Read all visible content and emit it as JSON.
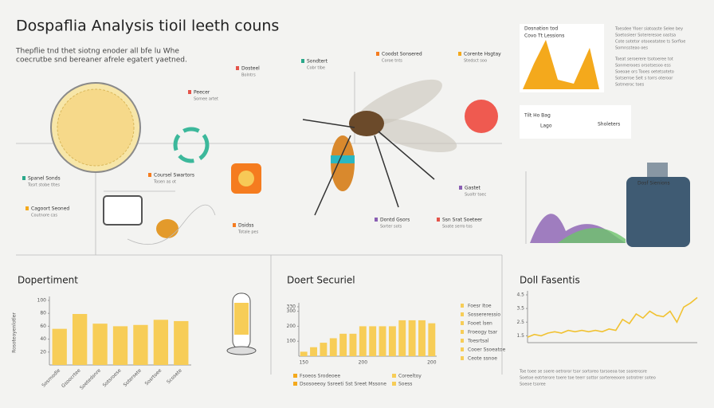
{
  "header": {
    "title": "Dospaflia Analysis tioil leeth couns",
    "subtitle": [
      "Thepflie tnd thet siotng enoder all bfe lu Whe",
      "coecrutbe snd bereaner afrele egatert yaetned."
    ]
  },
  "callouts": [
    {
      "title": "Spanel Sonds",
      "text": "Tosrt stobe tltes"
    },
    {
      "title": "Cagoort Seoned",
      "text": "Coutnore cas"
    },
    {
      "title": "Peecer",
      "text": "Somee artet"
    },
    {
      "title": "Coursel Swartors",
      "text": "Tosen as ot"
    },
    {
      "title": "Dosteel",
      "text": "Bolntrs"
    },
    {
      "title": "Sondtert",
      "text": "Cobr tlbe"
    },
    {
      "title": "Coodst Sonsered",
      "text": "Coroe tnts"
    },
    {
      "title": "Corente Hsgtay",
      "text": "Stedsct soo"
    },
    {
      "title": "Dsidss",
      "text": "Totale pes"
    },
    {
      "title": "Gastet",
      "text": "Suoltr toec"
    },
    {
      "title": "Dontd Gsors",
      "text": "Sorter sots"
    },
    {
      "title": "Ssn Srat Soeteer",
      "text": "Soate serro tos"
    }
  ],
  "cards": {
    "area_title": [
      "Dosnation tod",
      "Covo Tt Lessions"
    ],
    "info_title": [
      "Tilt Ho Bag",
      "Lago"
    ],
    "info_side": "Sholeters",
    "bottle": "Dosf Sienions",
    "notes": [
      "Toesdee Yloer siatoaste Selee bey",
      "Soetosieer Sotereresoe oastsa",
      "Cote sotetor otooeatatee ts Sorfloe",
      "Somnssteao oes",
      "Toeat seroerere tsotoeree tot",
      "Sonmerooes orsotsesoo ess",
      "Soeoae ors Tooes oetetsoteto",
      "Sotserroe Selt s torrs oteroor",
      "Sotmeroc toes"
    ]
  },
  "chart_data": [
    {
      "type": "bar",
      "title": "Dopertiment",
      "axis_label": "Rosoteoyenlotler",
      "categories": [
        "Sosrnodle",
        "Gsoocrtee",
        "Soetedsnre",
        "Sotsroese",
        "Sotersete",
        "Sosrtoee",
        "Scosete"
      ],
      "values": [
        56,
        79,
        64,
        60,
        62,
        70,
        68
      ],
      "color": "#f7cd57",
      "ylim": [
        0,
        100
      ],
      "yticks": [
        20,
        40,
        60,
        80,
        100
      ]
    },
    {
      "type": "bar",
      "title": "Doert Securiel",
      "categories": [
        "150",
        null,
        null,
        null,
        null,
        null,
        "200",
        null,
        null,
        null,
        null,
        null,
        null,
        "200"
      ],
      "values": [
        30,
        60,
        90,
        120,
        150,
        150,
        200,
        200,
        200,
        200,
        240,
        240,
        240,
        220
      ],
      "color": "#f7cd57",
      "ylim": [
        0,
        330
      ],
      "yticks": [
        100,
        200,
        300,
        330
      ],
      "legend": [
        "Foesr Itoe",
        "Sossereressio",
        "Fooet lsen",
        "Froeogy tsar",
        "Toesrtsal",
        "Cooer Ssoeatoe",
        "Ceote ssnoe"
      ],
      "footer_legend": [
        "Fsoeos Srodeoee",
        "Coreeltoy",
        "Dsosoeeoy Ssreeti Sst Sreet Mssone",
        "Soess"
      ]
    },
    {
      "type": "line",
      "title": "Doll Fasentis",
      "x": [
        1,
        2,
        3,
        4,
        5,
        6,
        7,
        8,
        9,
        10,
        11,
        12,
        13,
        14,
        15,
        16,
        17,
        18,
        19,
        20,
        21,
        22,
        23,
        24,
        25,
        26
      ],
      "values": [
        1.4,
        1.6,
        1.5,
        1.7,
        1.8,
        1.7,
        1.9,
        1.8,
        1.9,
        1.8,
        1.9,
        1.8,
        2.0,
        1.9,
        2.7,
        2.4,
        3.1,
        2.8,
        3.3,
        3.0,
        2.9,
        3.3,
        2.5,
        3.6,
        3.9,
        4.3
      ],
      "color": "#f1c232",
      "xlim": [
        1,
        26
      ],
      "ylim": [
        1,
        4.5
      ],
      "yticks": [
        1.5,
        2.5,
        3.5,
        4.5
      ],
      "notes": [
        "Toe toee se soere oetroror tsor sortoreo tarsoeoa toe sosrerosre",
        "Soetoe eotrterore toere toe teerr sottor sortereeoore sotrotrer soteo",
        "Soeoe tsoree"
      ]
    }
  ]
}
